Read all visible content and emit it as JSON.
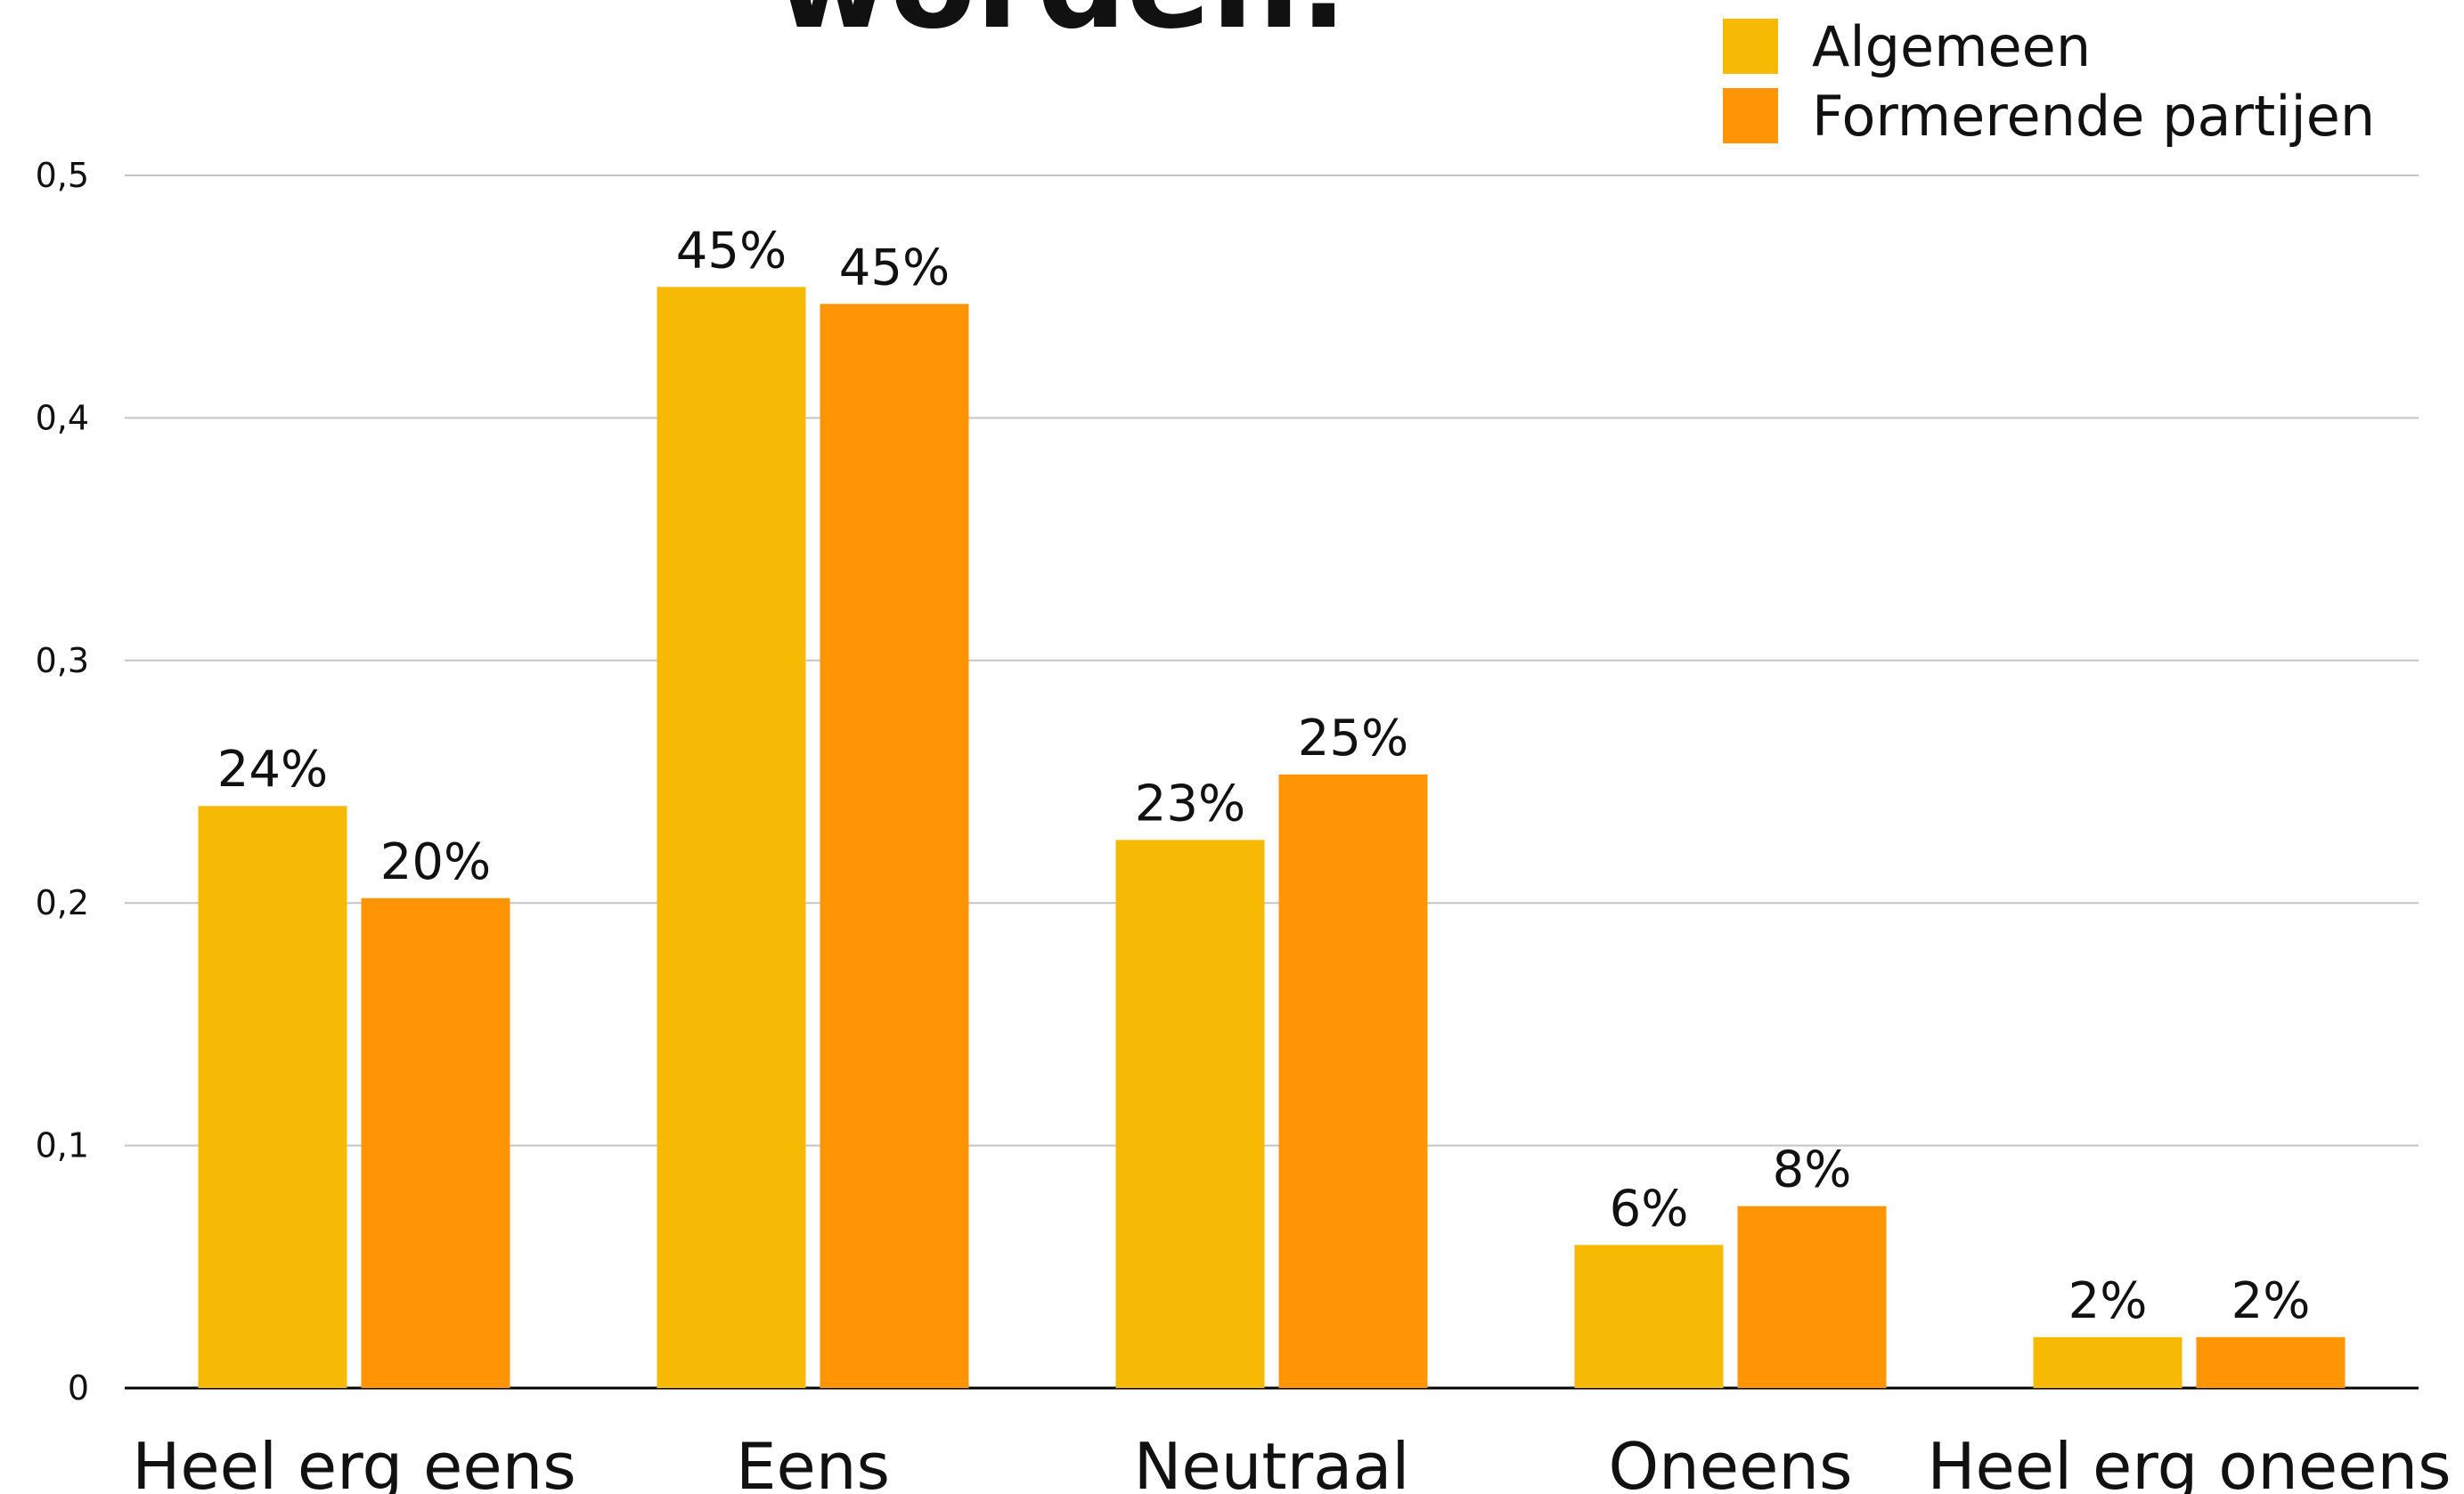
{
  "chart_data": {
    "type": "bar",
    "title": "worden.",
    "categories": [
      "Heel erg eens",
      "Eens",
      "Neutraal",
      "Oneens",
      "Heel erg oneens"
    ],
    "series": [
      {
        "name": "Algemeen",
        "color": "#f6ba05",
        "values": [
          0.24,
          0.454,
          0.226,
          0.059,
          0.021
        ],
        "value_labels": [
          "24%",
          "45%",
          "23%",
          "6%",
          "2%"
        ]
      },
      {
        "name": "Formerende partijen",
        "color": "#ff9505",
        "values": [
          0.202,
          0.447,
          0.253,
          0.075,
          0.021
        ],
        "value_labels": [
          "20%",
          "45%",
          "25%",
          "8%",
          "2%"
        ]
      }
    ],
    "ylim": [
      0,
      0.5
    ],
    "yticks": [
      0,
      {
        "value": 0.1,
        "label": "0,1"
      },
      {
        "value": 0.2,
        "label": "0,2"
      },
      {
        "value": 0.3,
        "label": "0,3"
      },
      {
        "value": 0.4,
        "label": "0,4"
      },
      {
        "value": 0.5,
        "label": "0,5"
      }
    ],
    "grid": true,
    "legend": "top-right"
  }
}
